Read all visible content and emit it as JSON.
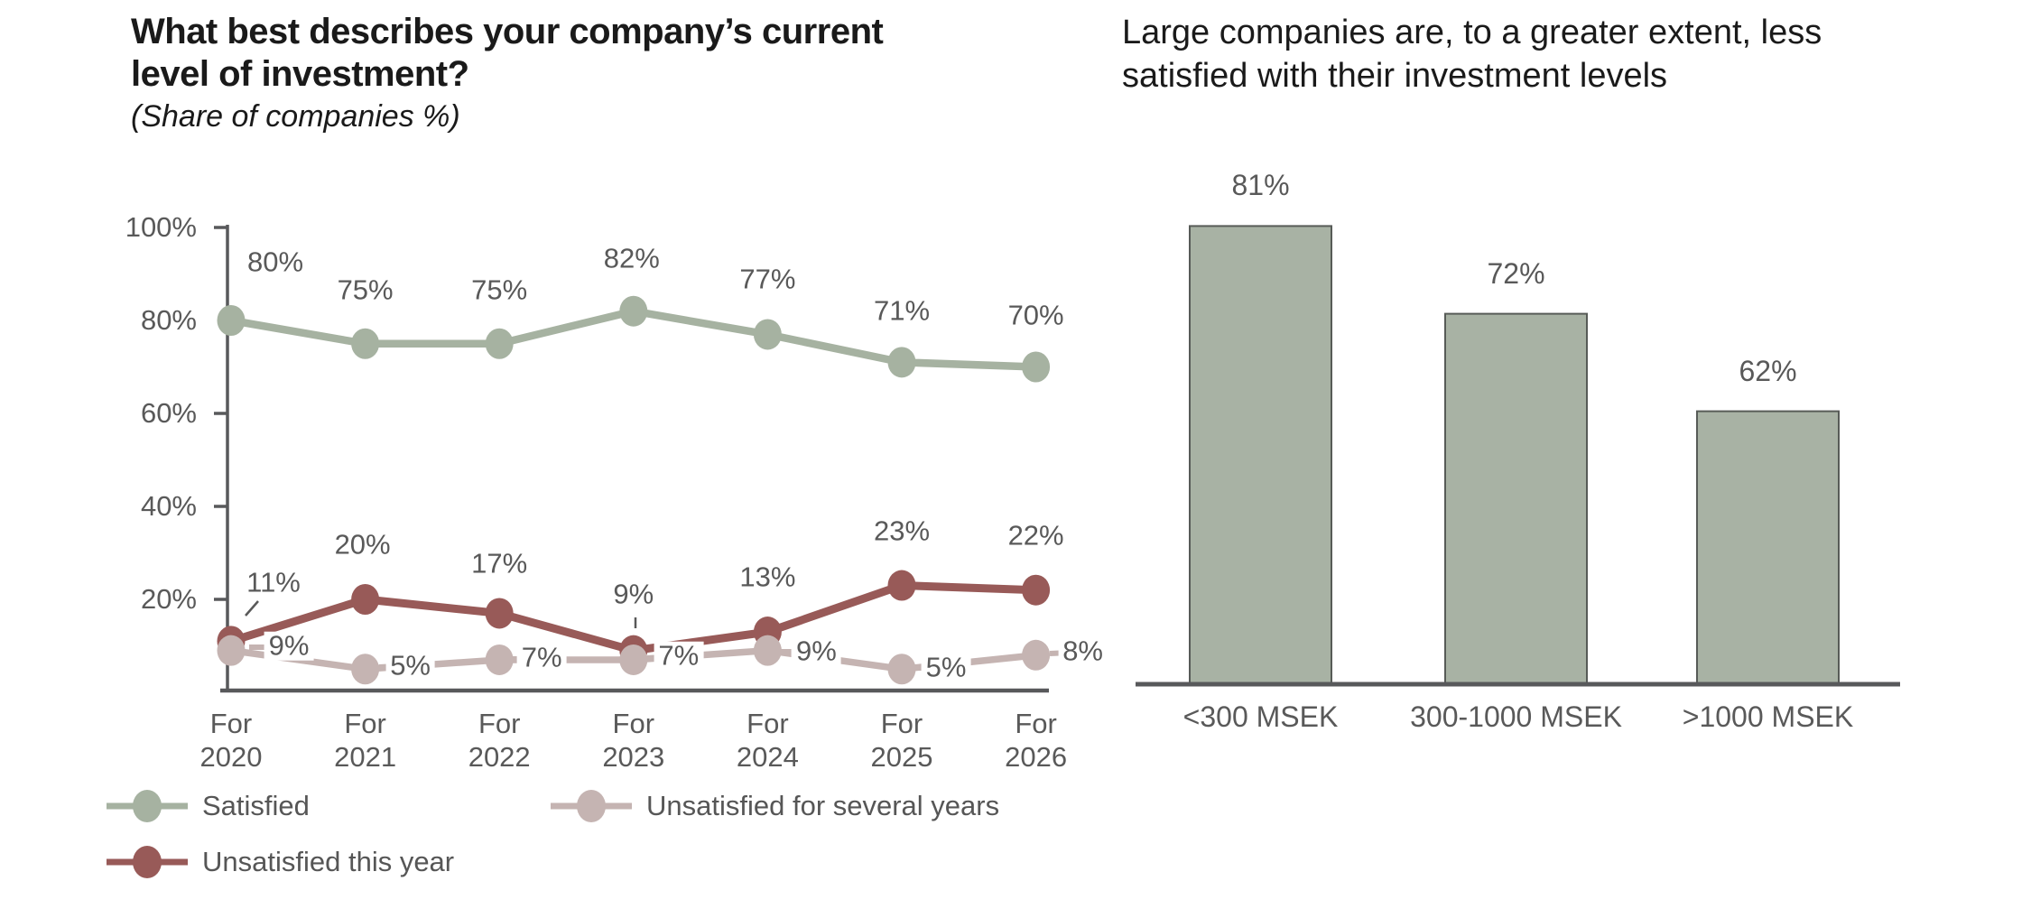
{
  "colors": {
    "satisfied": "#a6b2a1",
    "unsatisfied_this_year": "#985a58",
    "unsatisfied_several_years": "#c5b4b2",
    "bar_fill": "#a8b2a4",
    "bar_border": "#575b57",
    "axis": "#58595b",
    "label_text": "#595959",
    "title_text": "#1a1a1a"
  },
  "chart_data": [
    {
      "type": "line",
      "title": "What best describes your company’s current level of investment?",
      "title_lines": [
        "What best describes your company’s current",
        "level of investment?"
      ],
      "subtitle": "(Share of companies %)",
      "categories": [
        "For 2020",
        "For 2021",
        "For 2022",
        "For 2023",
        "For 2024",
        "For 2025",
        "For 2026"
      ],
      "series": [
        {
          "name": "Satisfied",
          "color": "#a6b2a1",
          "values": [
            80,
            75,
            75,
            82,
            77,
            71,
            70
          ]
        },
        {
          "name": "Unsatisfied this year",
          "color": "#985a58",
          "values": [
            11,
            20,
            17,
            9,
            13,
            23,
            22
          ]
        },
        {
          "name": "Unsatisfied for several years",
          "color": "#c5b4b2",
          "values": [
            9,
            5,
            7,
            7,
            9,
            5,
            8
          ]
        }
      ],
      "yticks": [
        100,
        80,
        60,
        40,
        20
      ],
      "ylim": [
        0,
        100
      ],
      "grid": false,
      "legend_position": "bottom",
      "data_labels": "percent"
    },
    {
      "type": "bar",
      "title": "Large companies are, to a greater extent, less satisfied with their investment levels",
      "title_lines": [
        "Large companies are, to a greater extent, less",
        "satisfied with their investment levels"
      ],
      "categories": [
        "<300 MSEK",
        "300-1000 MSEK",
        ">1000 MSEK"
      ],
      "values": [
        81,
        72,
        62
      ],
      "data_labels": "percent",
      "baseline_truncated": true,
      "grid": false
    }
  ]
}
